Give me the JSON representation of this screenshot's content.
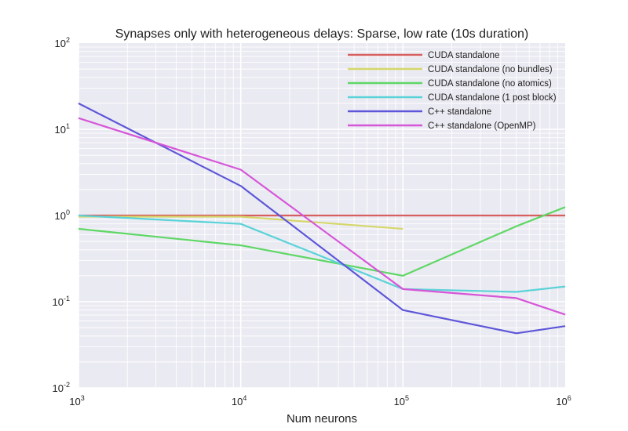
{
  "chart_data": {
    "type": "line",
    "title": "Synapses only with heterogeneous delays: Sparse, low rate (10s duration)",
    "xlabel": "Num neurons",
    "ylabel": "",
    "xscale": "log",
    "yscale": "log",
    "xlim": [
      1000,
      1000000
    ],
    "ylim": [
      0.01,
      100
    ],
    "grid": true,
    "legend_position": "top-right",
    "x_ticks": [
      {
        "base": "10",
        "exp": "3"
      },
      {
        "base": "10",
        "exp": "4"
      },
      {
        "base": "10",
        "exp": "5"
      },
      {
        "base": "10",
        "exp": "6"
      }
    ],
    "y_ticks": [
      {
        "base": "10",
        "exp": "2"
      },
      {
        "base": "10",
        "exp": "1"
      },
      {
        "base": "10",
        "exp": "0"
      },
      {
        "base": "10",
        "exp": "-1"
      },
      {
        "base": "10",
        "exp": "-2"
      }
    ],
    "series": [
      {
        "name": "CUDA standalone",
        "color": "#d65f5f",
        "x": [
          1000,
          10000,
          100000,
          500000,
          1000000
        ],
        "y": [
          1.0,
          1.0,
          1.0,
          1.0,
          1.0
        ]
      },
      {
        "name": "CUDA standalone (no bundles)",
        "color": "#d5d76a",
        "x": [
          1000,
          10000,
          100000
        ],
        "y": [
          0.97,
          0.97,
          0.7
        ]
      },
      {
        "name": "CUDA standalone (no atomics)",
        "color": "#5fd765",
        "x": [
          1000,
          10000,
          100000,
          500000,
          1000000
        ],
        "y": [
          0.7,
          0.45,
          0.2,
          0.75,
          1.25
        ]
      },
      {
        "name": "CUDA standalone (1 post block)",
        "color": "#5ad3d8",
        "x": [
          1000,
          10000,
          100000,
          500000,
          1000000
        ],
        "y": [
          1.0,
          0.8,
          0.14,
          0.13,
          0.15
        ]
      },
      {
        "name": "C++ standalone",
        "color": "#5e56d8",
        "x": [
          1000,
          10000,
          100000,
          500000,
          1000000
        ],
        "y": [
          20.0,
          2.2,
          0.08,
          0.043,
          0.052
        ]
      },
      {
        "name": "C++ standalone (OpenMP)",
        "color": "#d656d8",
        "x": [
          1000,
          10000,
          100000,
          500000,
          1000000
        ],
        "y": [
          13.5,
          3.4,
          0.14,
          0.11,
          0.071
        ]
      }
    ]
  }
}
